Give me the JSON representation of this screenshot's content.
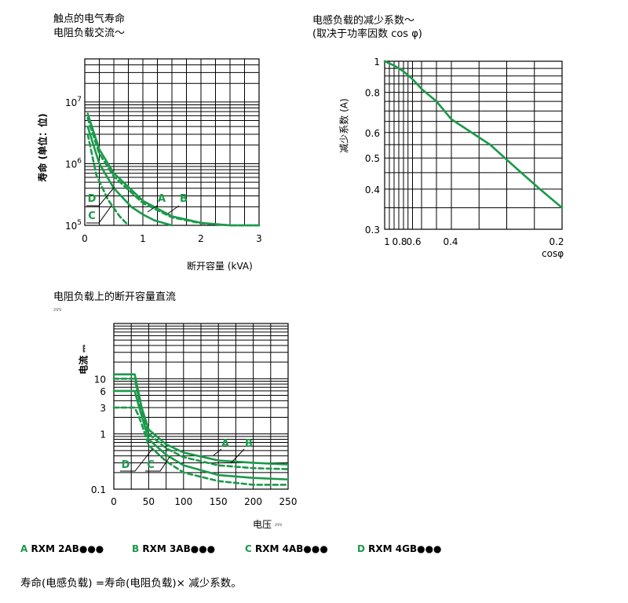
{
  "chart_data": [
    {
      "type": "line",
      "title_line1": "触点的电气寿命",
      "title_line2": "电阻负载交流～",
      "xlabel": "断开容量 (kVA)",
      "ylabel": "寿命 (单位：位)",
      "x_scale": "linear",
      "y_scale": "log",
      "xlim": [
        0,
        3
      ],
      "ylim": [
        100000,
        50000000
      ],
      "x_ticks": [
        "0",
        "1",
        "2",
        "3"
      ],
      "y_ticks": [
        {
          "base": "10",
          "exp": "5"
        },
        {
          "base": "10",
          "exp": "6"
        },
        {
          "base": "10",
          "exp": "7"
        }
      ],
      "grid": true,
      "series": [
        {
          "name": "A",
          "style": "solid",
          "x": [
            0.05,
            0.25,
            0.5,
            1.0,
            1.5,
            2.0,
            2.5,
            3.0
          ],
          "y": [
            6500000,
            1700000,
            700000,
            250000,
            140000,
            110000,
            100000,
            100000
          ]
        },
        {
          "name": "B",
          "style": "dashed",
          "x": [
            0.05,
            0.25,
            0.5,
            1.0,
            1.5,
            2.0,
            2.5,
            3.0
          ],
          "y": [
            5500000,
            1450000,
            620000,
            230000,
            135000,
            108000,
            100000,
            100000
          ]
        },
        {
          "name": "C",
          "style": "solid",
          "x": [
            0.05,
            0.25,
            0.5,
            0.8,
            1.0,
            1.2,
            1.5
          ],
          "y": [
            4000000,
            1000000,
            400000,
            200000,
            150000,
            120000,
            100000
          ]
        },
        {
          "name": "D",
          "style": "dashed",
          "x": [
            0.05,
            0.2,
            0.4,
            0.6,
            0.75
          ],
          "y": [
            3000000,
            650000,
            260000,
            140000,
            100000
          ]
        }
      ]
    },
    {
      "type": "line",
      "title_line1": "电感负载的减少系数～",
      "title_line2": "(取决于功率因数 cos φ)",
      "xlabel": "cosφ",
      "ylabel": "减少系数 (A)",
      "x_scale": "reversed",
      "y_scale": "log",
      "xlim": [
        1,
        0.2
      ],
      "ylim": [
        0.3,
        1
      ],
      "x_ticks": [
        "1",
        "0.8",
        "0.6",
        "0.4",
        "0.2"
      ],
      "y_ticks": [
        "0.3",
        "0.4",
        "0.5",
        "0.6",
        "0.8",
        "1"
      ],
      "grid": true,
      "series": [
        {
          "name": "",
          "style": "solid",
          "x": [
            1.0,
            0.9,
            0.8,
            0.7,
            0.6,
            0.5,
            0.4,
            0.33,
            0.28,
            0.24,
            0.2
          ],
          "y": [
            1.0,
            0.97,
            0.93,
            0.88,
            0.82,
            0.75,
            0.66,
            0.55,
            0.46,
            0.4,
            0.35
          ]
        }
      ]
    },
    {
      "type": "line",
      "title_line1": "电阻负载上的断开容量直流",
      "title_line2": "⎓",
      "xlabel": "电压 ⎓",
      "ylabel": "电流 ⎓",
      "x_scale": "linear",
      "y_scale": "log",
      "xlim": [
        0,
        250
      ],
      "ylim": [
        0.1,
        100
      ],
      "x_ticks": [
        "0",
        "50",
        "100",
        "150",
        "200",
        "250"
      ],
      "y_ticks": [
        "0.1",
        "1",
        "3",
        "6",
        "10"
      ],
      "grid": true,
      "series": [
        {
          "name": "A",
          "style": "solid",
          "x": [
            0,
            30,
            35,
            40,
            50,
            75,
            100,
            150,
            200,
            250
          ],
          "y": [
            12,
            12,
            6,
            3,
            1.2,
            0.65,
            0.46,
            0.33,
            0.3,
            0.28
          ]
        },
        {
          "name": "B",
          "style": "dashed",
          "x": [
            0,
            30,
            35,
            40,
            50,
            75,
            100,
            150,
            200,
            250
          ],
          "y": [
            10,
            10,
            5,
            2.6,
            1.0,
            0.55,
            0.38,
            0.27,
            0.24,
            0.23
          ]
        },
        {
          "name": "C",
          "style": "solid",
          "x": [
            0,
            30,
            35,
            40,
            50,
            75,
            100,
            150,
            200,
            250
          ],
          "y": [
            6,
            6,
            3.5,
            2.1,
            0.8,
            0.42,
            0.27,
            0.18,
            0.16,
            0.15
          ]
        },
        {
          "name": "D",
          "style": "dashed",
          "x": [
            0,
            30,
            35,
            40,
            50,
            75,
            100,
            150,
            200,
            250
          ],
          "y": [
            3,
            3,
            2.2,
            1.5,
            0.62,
            0.32,
            0.2,
            0.14,
            0.12,
            0.12
          ]
        }
      ]
    }
  ],
  "legend": [
    {
      "key": "A",
      "text": " RXM 2AB●●●"
    },
    {
      "key": "B",
      "text": " RXM 3AB●●●"
    },
    {
      "key": "C",
      "text": " RXM 4AB●●●"
    },
    {
      "key": "D",
      "text": " RXM 4GB●●●"
    }
  ],
  "formula": "寿命(电感负载) =寿命(电阻负载)× 减少系数。",
  "colors": {
    "curve": "#1a9a4a",
    "grid": "#000000"
  }
}
